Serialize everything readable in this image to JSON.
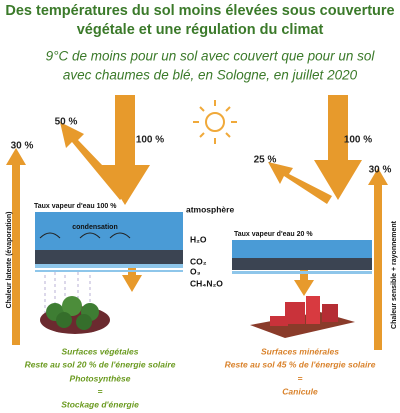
{
  "header": {
    "title": [
      "Des températures du sol moins élevées sous couverture",
      "végétale et une régulation du climat"
    ],
    "subtitle": [
      "9°C de moins pour un sol avec couvert que pour un sol",
      "avec chaumes de blé, en Sologne, en juillet 2020"
    ]
  },
  "left": {
    "incoming": "100 %",
    "reflected": "50 %",
    "latent": "30 %",
    "latent_label": "Chaleur latente (évaporation)",
    "vapour": "Taux vapeur d'eau 100 %",
    "atmosphere": "atmosphère",
    "condensation": "condensation",
    "gases": [
      "H₂O",
      "CO₂",
      "O₃",
      "CH₄N₂O"
    ],
    "caption": [
      "Surfaces végétales",
      "Reste au sol 20 % de l'énergie solaire",
      "Photosynthèse",
      "=",
      "Stockage d'énergie"
    ]
  },
  "right": {
    "incoming": "100 %",
    "reflected": "25 %",
    "sensible": "30 %",
    "sensible_label": "Chaleur sensible + rayonnement",
    "vapour": "Taux vapeur d'eau 20 %",
    "caption": [
      "Surfaces minérales",
      "Reste au sol 45 % de l'énergie solaire",
      "=",
      "Canicule"
    ]
  }
}
